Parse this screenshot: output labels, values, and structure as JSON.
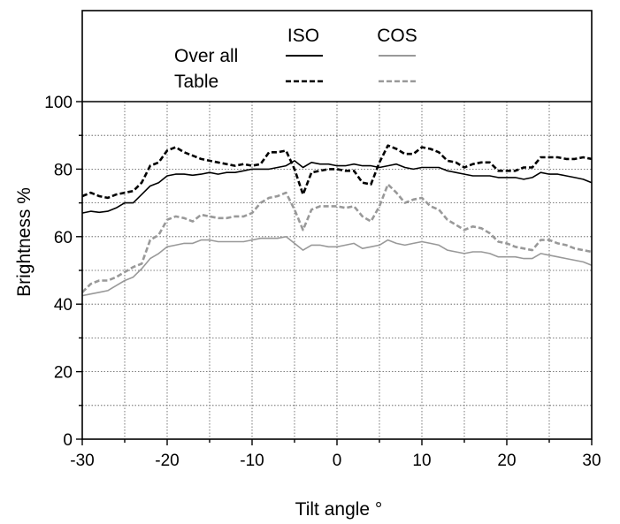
{
  "chart_data": {
    "type": "line",
    "xlabel": "Tilt angle °",
    "ylabel": "Brightness %",
    "xlim": [
      -30,
      30
    ],
    "ylim": [
      0,
      100
    ],
    "xticks": [
      -30,
      -20,
      -10,
      0,
      10,
      20,
      30
    ],
    "yticks": [
      0,
      20,
      40,
      60,
      80,
      100
    ],
    "grid": "dotted",
    "legend": {
      "position": "top",
      "column_headers": [
        "ISO",
        "COS"
      ],
      "row_labels": [
        "Over all",
        "Table"
      ]
    },
    "colors": {
      "iso": "#000000",
      "cos": "#999999"
    },
    "series": [
      {
        "name": "Over all ISO",
        "style": "solid",
        "color": "#000000",
        "x": [
          -30,
          -29,
          -28,
          -27,
          -26,
          -25,
          -24,
          -23,
          -22,
          -21,
          -20,
          -19,
          -18,
          -17,
          -16,
          -15,
          -14,
          -13,
          -12,
          -11,
          -10,
          -9,
          -8,
          -7,
          -6,
          -5,
          -4,
          -3,
          -2,
          -1,
          0,
          1,
          2,
          3,
          4,
          5,
          6,
          7,
          8,
          9,
          10,
          11,
          12,
          13,
          14,
          15,
          16,
          17,
          18,
          19,
          20,
          21,
          22,
          23,
          24,
          25,
          26,
          27,
          28,
          29,
          30
        ],
        "y": [
          67,
          67.5,
          67.2,
          67.5,
          68.5,
          70,
          70,
          72.5,
          75,
          76,
          78,
          78.5,
          78.5,
          78.2,
          78.5,
          79,
          78.5,
          79,
          79,
          79.5,
          80,
          80,
          80,
          80.5,
          81,
          82.5,
          80.5,
          82,
          81.5,
          81.5,
          81,
          81,
          81.5,
          81,
          81,
          80.5,
          81,
          81.5,
          80.5,
          80,
          80.5,
          80.5,
          80.5,
          79.5,
          79,
          78.5,
          78,
          78,
          78,
          77.5,
          77.5,
          77.5,
          77,
          77.5,
          79,
          78.5,
          78.5,
          78,
          77.5,
          77,
          76
        ]
      },
      {
        "name": "Table ISO",
        "style": "dashed",
        "color": "#000000",
        "x": [
          -30,
          -29,
          -28,
          -27,
          -26,
          -25,
          -24,
          -23,
          -22,
          -21,
          -20,
          -19,
          -18,
          -17,
          -16,
          -15,
          -14,
          -13,
          -12,
          -11,
          -10,
          -9,
          -8,
          -7,
          -6,
          -5,
          -4,
          -3,
          -2,
          -1,
          0,
          1,
          2,
          3,
          4,
          5,
          6,
          7,
          8,
          9,
          10,
          11,
          12,
          13,
          14,
          15,
          16,
          17,
          18,
          19,
          20,
          21,
          22,
          23,
          24,
          25,
          26,
          27,
          28,
          29,
          30
        ],
        "y": [
          72,
          73,
          72,
          71.5,
          72.5,
          73,
          73.5,
          76,
          81,
          82,
          85.5,
          86.5,
          85,
          84,
          83,
          82.5,
          82,
          81.5,
          81,
          81.5,
          81,
          81.5,
          85,
          85,
          85.5,
          80,
          72.5,
          79,
          79.5,
          80,
          80,
          79.5,
          79.5,
          76,
          75.5,
          82,
          87,
          86,
          84.5,
          84.5,
          86.5,
          86,
          85,
          82.5,
          82,
          80.5,
          81.5,
          82,
          82,
          79.5,
          79.5,
          79.5,
          80.5,
          80.5,
          83.5,
          83.5,
          83.5,
          83,
          83,
          83.5,
          83
        ]
      },
      {
        "name": "Over all COS",
        "style": "solid",
        "color": "#999999",
        "x": [
          -30,
          -29,
          -28,
          -27,
          -26,
          -25,
          -24,
          -23,
          -22,
          -21,
          -20,
          -19,
          -18,
          -17,
          -16,
          -15,
          -14,
          -13,
          -12,
          -11,
          -10,
          -9,
          -8,
          -7,
          -6,
          -5,
          -4,
          -3,
          -2,
          -1,
          0,
          1,
          2,
          3,
          4,
          5,
          6,
          7,
          8,
          9,
          10,
          11,
          12,
          13,
          14,
          15,
          16,
          17,
          18,
          19,
          20,
          21,
          22,
          23,
          24,
          25,
          26,
          27,
          28,
          29,
          30
        ],
        "y": [
          42.5,
          43,
          43.5,
          44,
          45.5,
          47,
          48,
          50.5,
          53.5,
          55,
          57,
          57.5,
          58,
          58,
          59,
          59,
          58.5,
          58.5,
          58.5,
          58.5,
          59,
          59.5,
          59.5,
          59.5,
          60,
          58,
          56,
          57.5,
          57.5,
          57,
          57,
          57.5,
          58,
          56.5,
          57,
          57.5,
          59,
          58,
          57.5,
          58,
          58.5,
          58,
          57.5,
          56,
          55.5,
          55,
          55.5,
          55.5,
          55,
          54,
          54,
          54,
          53.5,
          53.5,
          55,
          54.5,
          54,
          53.5,
          53,
          52.5,
          51.5
        ]
      },
      {
        "name": "Table COS",
        "style": "dashed",
        "color": "#999999",
        "x": [
          -30,
          -29,
          -28,
          -27,
          -26,
          -25,
          -24,
          -23,
          -22,
          -21,
          -20,
          -19,
          -18,
          -17,
          -16,
          -15,
          -14,
          -13,
          -12,
          -11,
          -10,
          -9,
          -8,
          -7,
          -6,
          -5,
          -4,
          -3,
          -2,
          -1,
          0,
          1,
          2,
          3,
          4,
          5,
          6,
          7,
          8,
          9,
          10,
          11,
          12,
          13,
          14,
          15,
          16,
          17,
          18,
          19,
          20,
          21,
          22,
          23,
          24,
          25,
          26,
          27,
          28,
          29,
          30
        ],
        "y": [
          43.5,
          46,
          47,
          47,
          48,
          49.5,
          51,
          52,
          59,
          60.5,
          65,
          66,
          65.5,
          64.5,
          66.5,
          66,
          65.5,
          65.5,
          66,
          66,
          67,
          70,
          71.5,
          72,
          73,
          68,
          62,
          68,
          69,
          69,
          69,
          68.5,
          69,
          66,
          64.5,
          69,
          75.5,
          73,
          70,
          71,
          71.5,
          69,
          68,
          65,
          63.5,
          62,
          63,
          62.5,
          61,
          58.5,
          58,
          57,
          56.5,
          56,
          59,
          59,
          58,
          57.5,
          56.5,
          56,
          55.5
        ]
      }
    ]
  }
}
